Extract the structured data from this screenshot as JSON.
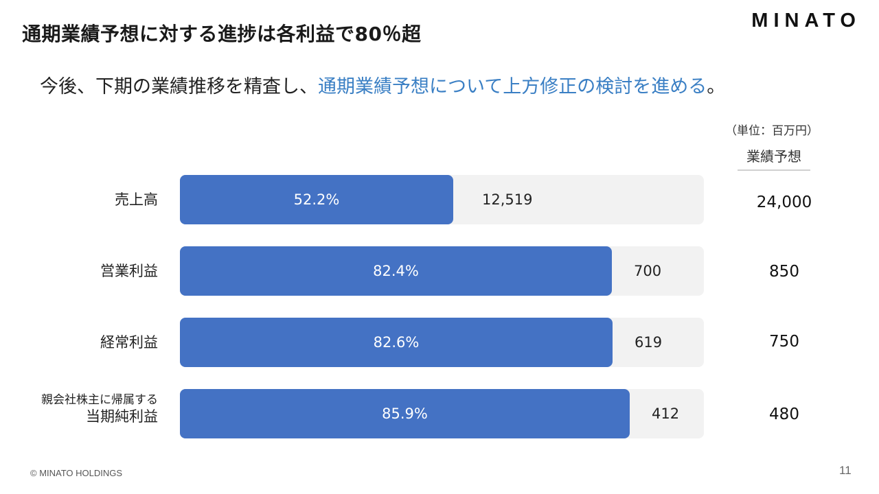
{
  "title": "通期業績予想に対する進捗は各利益で80％超",
  "logo": "MINATO",
  "subtitle": {
    "prefix": "今後、下期の業績推移を精査し、",
    "highlight": "通期業績予想について上方修正の検討を進める",
    "suffix": "。"
  },
  "unit_label": "（単位：百万円）",
  "forecast_header": "業績予想",
  "colors": {
    "bar": "#4472c4",
    "track": "#f2f2f2",
    "highlight": "#3a7fc4"
  },
  "footer": {
    "copyright": "© MINATO HOLDINGS",
    "page": "11"
  },
  "chart_data": {
    "type": "bar",
    "orientation": "horizontal",
    "categories": [
      "売上高",
      "営業利益",
      "経常利益",
      "親会社株主に帰属する当期純利益"
    ],
    "rows": [
      {
        "label_lines": [
          "売上高"
        ],
        "progress_label": "52.2%",
        "progress": 52.2,
        "actual": "12,519",
        "forecast": "24,000"
      },
      {
        "label_lines": [
          "営業利益"
        ],
        "progress_label": "82.4%",
        "progress": 82.4,
        "actual": "700",
        "forecast": "850"
      },
      {
        "label_lines": [
          "経常利益"
        ],
        "progress_label": "82.6%",
        "progress": 82.6,
        "actual": "619",
        "forecast": "750"
      },
      {
        "label_lines": [
          "親会社株主に帰属する",
          "当期純利益"
        ],
        "progress_label": "85.9%",
        "progress": 85.9,
        "actual": "412",
        "forecast": "480"
      }
    ],
    "xlim": [
      0,
      100
    ]
  }
}
